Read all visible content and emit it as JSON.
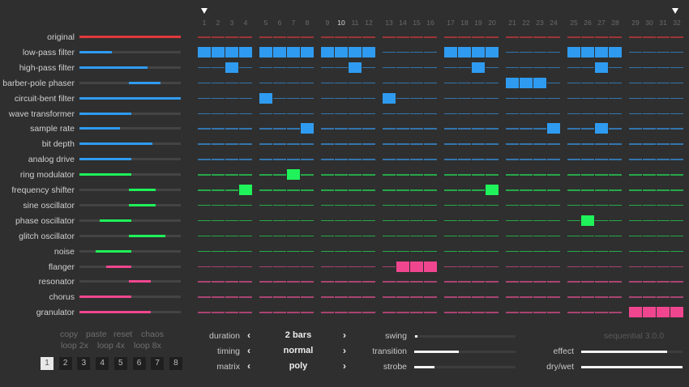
{
  "colors": {
    "background": "#2f2f2f",
    "red": "#e0393e",
    "blue": "#2f9bf0",
    "green": "#1ff25a",
    "pink": "#f0468f",
    "track": "#444444"
  },
  "steps": {
    "count": 32,
    "labels": [
      "1",
      "2",
      "3",
      "4",
      "5",
      "6",
      "7",
      "8",
      "9",
      "10",
      "11",
      "12",
      "13",
      "14",
      "15",
      "16",
      "17",
      "18",
      "19",
      "20",
      "21",
      "22",
      "23",
      "24",
      "25",
      "26",
      "27",
      "28",
      "29",
      "30",
      "31",
      "32"
    ],
    "highlighted": 10,
    "loop_start_marker": 1,
    "loop_end_marker": 32
  },
  "effects": [
    {
      "label": "original",
      "color": "red",
      "slider": [
        0,
        1.0
      ],
      "active": []
    },
    {
      "label": "low-pass filter",
      "color": "blue",
      "slider": [
        0,
        0.32
      ],
      "active": [
        1,
        2,
        3,
        4,
        5,
        6,
        7,
        8,
        9,
        10,
        11,
        12,
        17,
        18,
        19,
        20,
        25,
        26,
        27,
        28
      ]
    },
    {
      "label": "high-pass filter",
      "color": "blue",
      "slider": [
        0,
        0.67
      ],
      "active": [
        3,
        11,
        19,
        27
      ]
    },
    {
      "label": "barber-pole phaser",
      "color": "blue",
      "slider": [
        0.49,
        0.8
      ],
      "active": [
        21,
        22,
        23
      ]
    },
    {
      "label": "circuit-bent filter",
      "color": "blue",
      "slider": [
        0,
        1.0
      ],
      "active": [
        5,
        13
      ]
    },
    {
      "label": "wave transformer",
      "color": "blue",
      "slider": [
        0,
        0.51
      ],
      "active": []
    },
    {
      "label": "sample rate",
      "color": "blue",
      "slider": [
        0,
        0.4
      ],
      "active": [
        8,
        24,
        27
      ]
    },
    {
      "label": "bit depth",
      "color": "blue",
      "slider": [
        0,
        0.72
      ],
      "active": []
    },
    {
      "label": "analog drive",
      "color": "blue",
      "slider": [
        0,
        0.51
      ],
      "active": []
    },
    {
      "label": "ring modulator",
      "color": "green",
      "slider": [
        0,
        0.51
      ],
      "active": [
        7
      ]
    },
    {
      "label": "frequency shifter",
      "color": "green",
      "slider": [
        0.49,
        0.75
      ],
      "active": [
        4,
        20
      ]
    },
    {
      "label": "sine oscillator",
      "color": "green",
      "slider": [
        0.49,
        0.75
      ],
      "active": []
    },
    {
      "label": "phase oscillator",
      "color": "green",
      "slider": [
        0.2,
        0.51
      ],
      "active": [
        26
      ]
    },
    {
      "label": "glitch oscillator",
      "color": "green",
      "slider": [
        0.49,
        0.85
      ],
      "active": []
    },
    {
      "label": "noise",
      "color": "green",
      "slider": [
        0.16,
        0.51
      ],
      "active": []
    },
    {
      "label": "flanger",
      "color": "pink",
      "slider": [
        0.26,
        0.51
      ],
      "active": [
        14,
        15,
        16
      ]
    },
    {
      "label": "resonator",
      "color": "pink",
      "slider": [
        0.49,
        0.7
      ],
      "active": []
    },
    {
      "label": "chorus",
      "color": "pink",
      "slider": [
        0,
        0.51
      ],
      "active": []
    },
    {
      "label": "granulator",
      "color": "pink",
      "slider": [
        0,
        0.7
      ],
      "active": [
        29,
        30,
        31,
        32
      ]
    }
  ],
  "actions": {
    "copy": "copy",
    "paste": "paste",
    "reset": "reset",
    "chaos": "chaos",
    "loop2": "loop 2x",
    "loop4": "loop 4x",
    "loop8": "loop 8x"
  },
  "patterns": {
    "labels": [
      "1",
      "2",
      "3",
      "4",
      "5",
      "6",
      "7",
      "8"
    ],
    "active": 1
  },
  "params": {
    "duration": {
      "label": "duration",
      "value": "2 bars"
    },
    "timing": {
      "label": "timing",
      "value": "normal"
    },
    "matrix": {
      "label": "matrix",
      "value": "poly"
    },
    "prev_icon": "‹",
    "next_icon": "›"
  },
  "sliders": {
    "swing": {
      "label": "swing",
      "value": 0.01
    },
    "transition": {
      "label": "transition",
      "value": 0.44
    },
    "strobe": {
      "label": "strobe",
      "value": 0.2
    },
    "effect": {
      "label": "effect",
      "value": 0.85
    },
    "drywet": {
      "label": "dry/wet",
      "value": 1.0
    }
  },
  "version": "sequential 3.0.0"
}
